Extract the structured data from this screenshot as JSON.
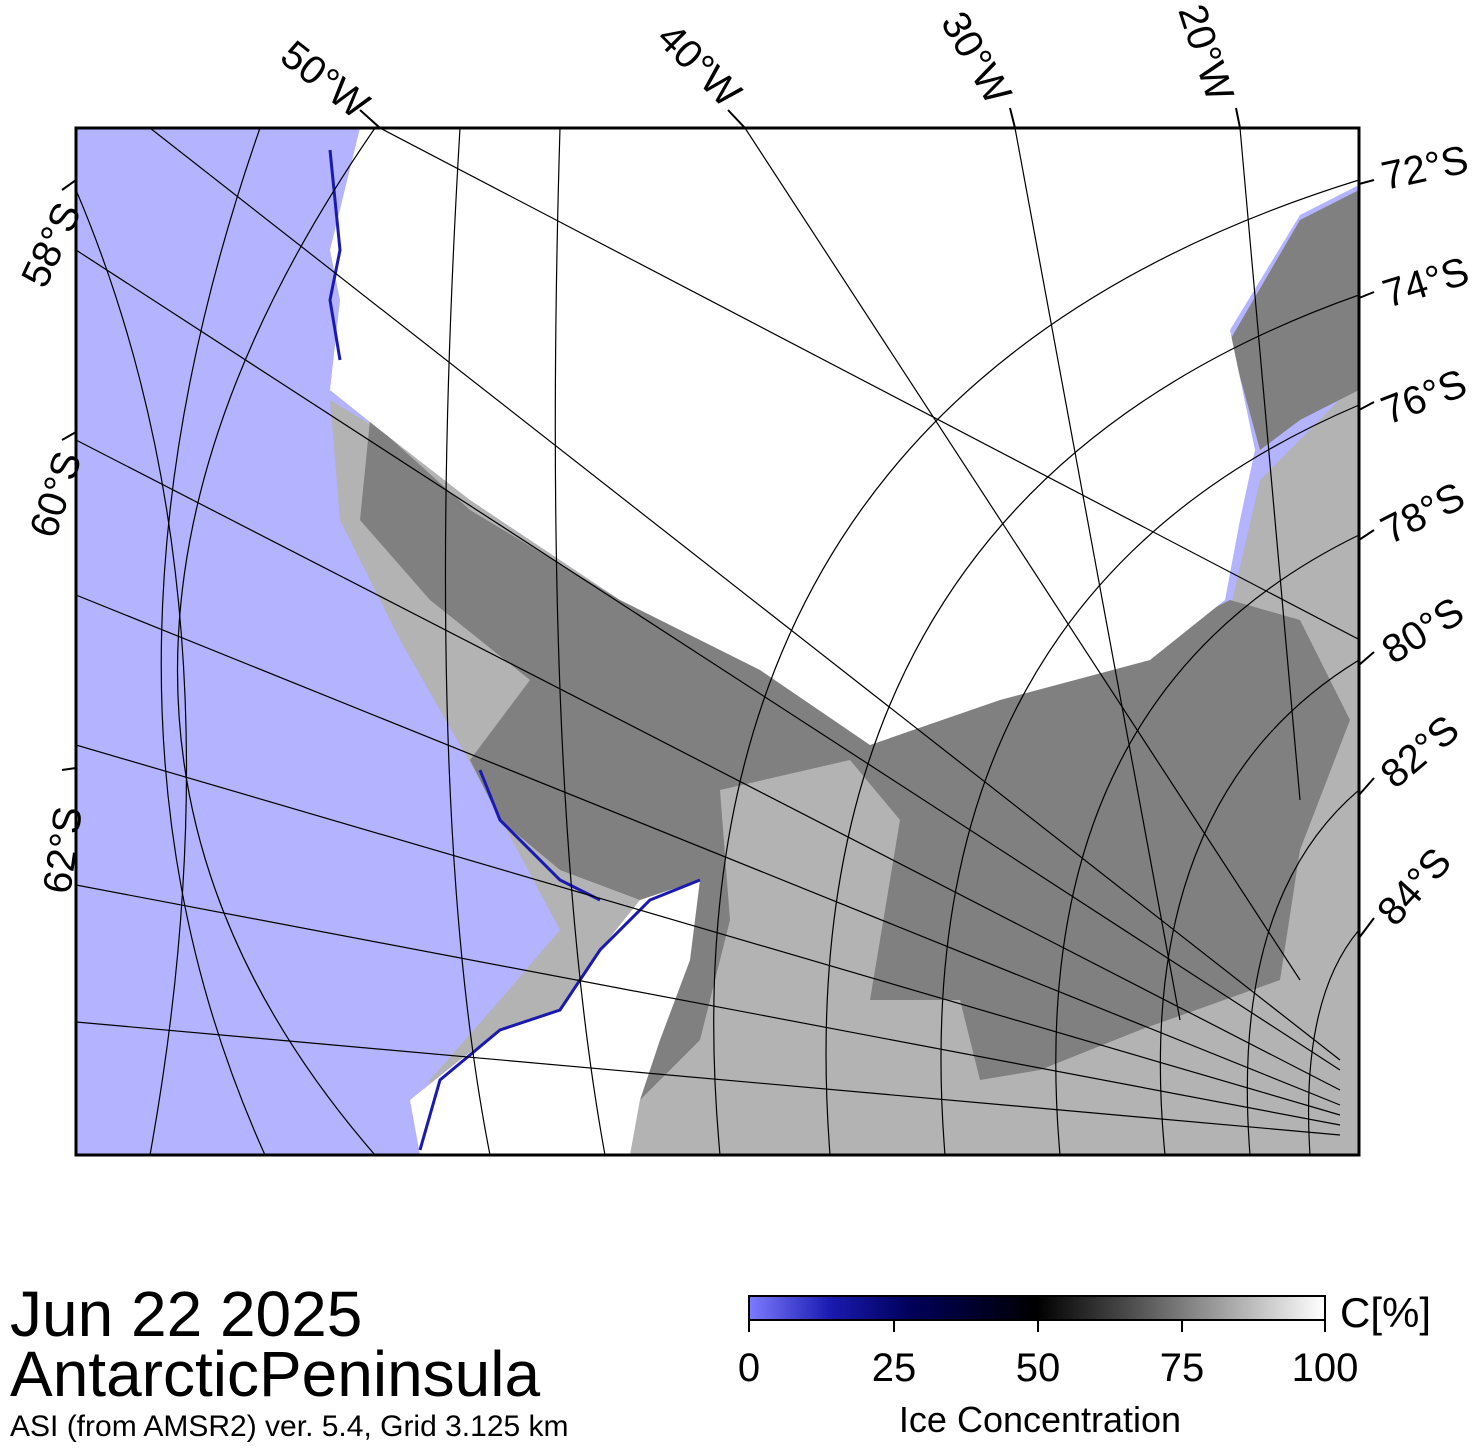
{
  "map": {
    "longitude_labels": [
      "50°W",
      "40°W",
      "30°W",
      "20°W"
    ],
    "latitude_labels_left": [
      "58°S",
      "60°S",
      "62°S"
    ],
    "latitude_labels_right": [
      "72°S",
      "74°S",
      "76°S",
      "78°S",
      "80°S",
      "82°S",
      "84°S"
    ],
    "colors": {
      "ocean": "#b3b3ff",
      "sea_ice_100": "#ffffff",
      "land_ice": "#b3b3b3",
      "ice_shelf": "#808080",
      "graticule": "#000000"
    }
  },
  "footer": {
    "date": "Jun 22 2025",
    "region": "AntarcticPeninsula",
    "product": "ASI (from AMSR2) ver. 5.4,  Grid 3.125 km"
  },
  "colorbar": {
    "unit": "C[%]",
    "ticks": [
      "0",
      "25",
      "50",
      "75",
      "100"
    ],
    "title": "Ice Concentration",
    "range": [
      0,
      100
    ]
  }
}
